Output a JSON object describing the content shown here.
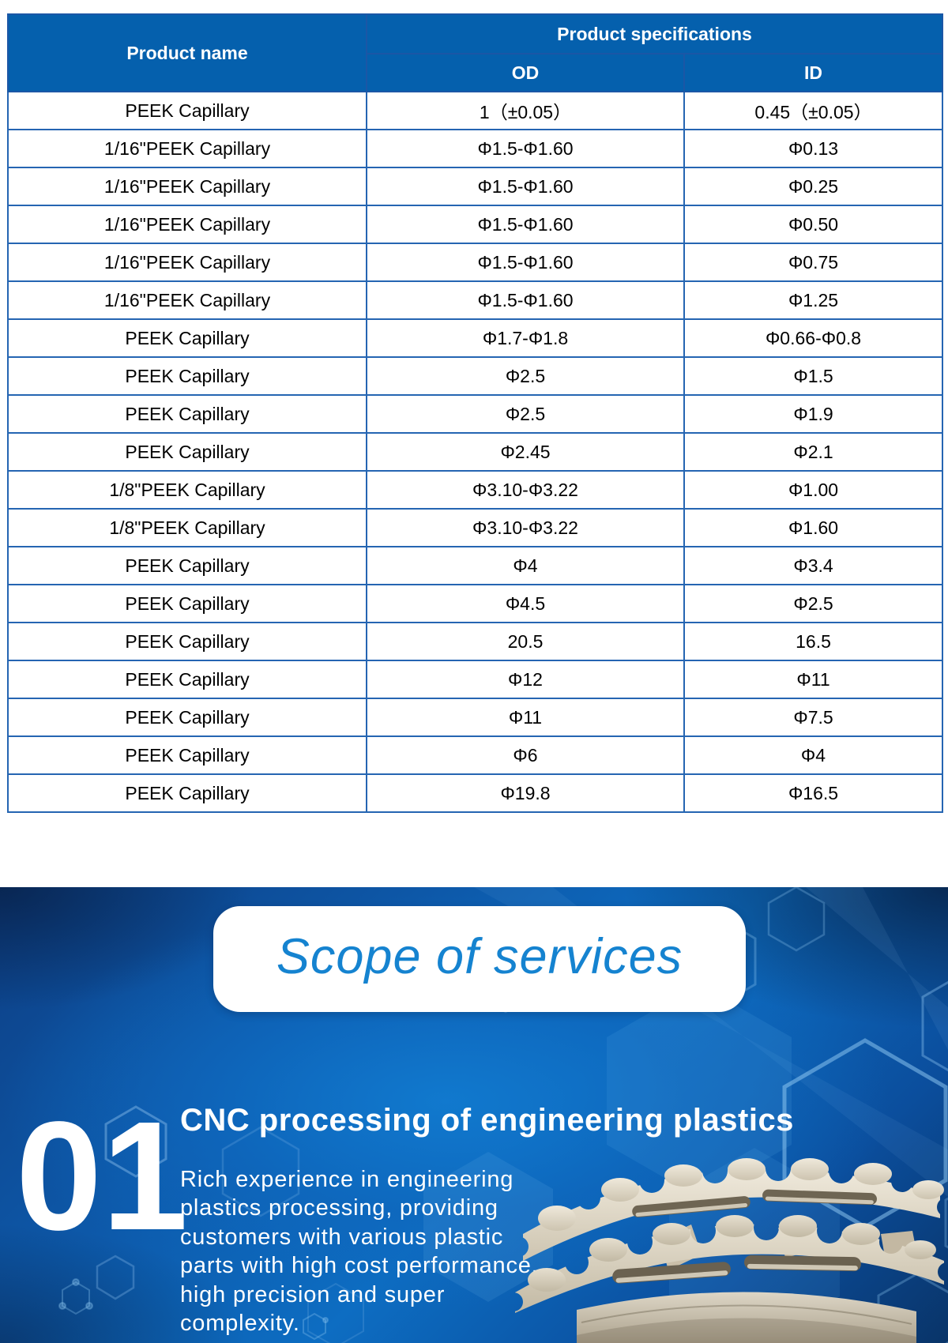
{
  "table": {
    "product_name_header": "Product name",
    "specs_header": "Product specifications",
    "od_header": "OD",
    "id_header": "ID",
    "rows": [
      {
        "name": "PEEK Capillary",
        "od": "1（±0.05）",
        "id": "0.45（±0.05）"
      },
      {
        "name": "1/16\"PEEK Capillary",
        "od": "Φ1.5-Φ1.60",
        "id": "Φ0.13"
      },
      {
        "name": "1/16\"PEEK Capillary",
        "od": "Φ1.5-Φ1.60",
        "id": "Φ0.25"
      },
      {
        "name": "1/16\"PEEK Capillary",
        "od": "Φ1.5-Φ1.60",
        "id": "Φ0.50"
      },
      {
        "name": "1/16\"PEEK Capillary",
        "od": "Φ1.5-Φ1.60",
        "id": "Φ0.75"
      },
      {
        "name": "1/16\"PEEK Capillary",
        "od": "Φ1.5-Φ1.60",
        "id": "Φ1.25"
      },
      {
        "name": "PEEK Capillary",
        "od": "Φ1.7-Φ1.8",
        "id": "Φ0.66-Φ0.8"
      },
      {
        "name": "PEEK Capillary",
        "od": "Φ2.5",
        "id": "Φ1.5"
      },
      {
        "name": "PEEK Capillary",
        "od": "Φ2.5",
        "id": "Φ1.9"
      },
      {
        "name": "PEEK Capillary",
        "od": "Φ2.45",
        "id": "Φ2.1"
      },
      {
        "name": "1/8\"PEEK Capillary",
        "od": "Φ3.10-Φ3.22",
        "id": "Φ1.00"
      },
      {
        "name": "1/8\"PEEK Capillary",
        "od": "Φ3.10-Φ3.22",
        "id": "Φ1.60"
      },
      {
        "name": "PEEK Capillary",
        "od": "Φ4",
        "id": "Φ3.4"
      },
      {
        "name": "PEEK Capillary",
        "od": "Φ4.5",
        "id": "Φ2.5"
      },
      {
        "name": "PEEK Capillary",
        "od": "20.5",
        "id": "16.5"
      },
      {
        "name": "PEEK Capillary",
        "od": "Φ12",
        "id": "Φ11"
      },
      {
        "name": "PEEK Capillary",
        "od": "Φ11",
        "id": "Φ7.5"
      },
      {
        "name": "PEEK Capillary",
        "od": "Φ6",
        "id": "Φ4"
      },
      {
        "name": "PEEK Capillary",
        "od": "Φ19.8",
        "id": "Φ16.5"
      }
    ]
  },
  "services": {
    "badge_title": "Scope of services",
    "item_number": "01",
    "item_title": "CNC processing of engineering plastics",
    "item_description_lines": [
      "Rich experience in engineering",
      "plastics processing, providing",
      "customers with various plastic",
      "parts with high cost performance,",
      "high precision and super",
      "complexity."
    ]
  },
  "colors": {
    "table_header_bg": "#0560ad",
    "table_border": "#2565b2",
    "badge_text": "#1583d0",
    "banner_bright_blue": "#0d74c8",
    "banner_dark_blue": "#092f63",
    "part_beige": "#d9d2c1"
  }
}
